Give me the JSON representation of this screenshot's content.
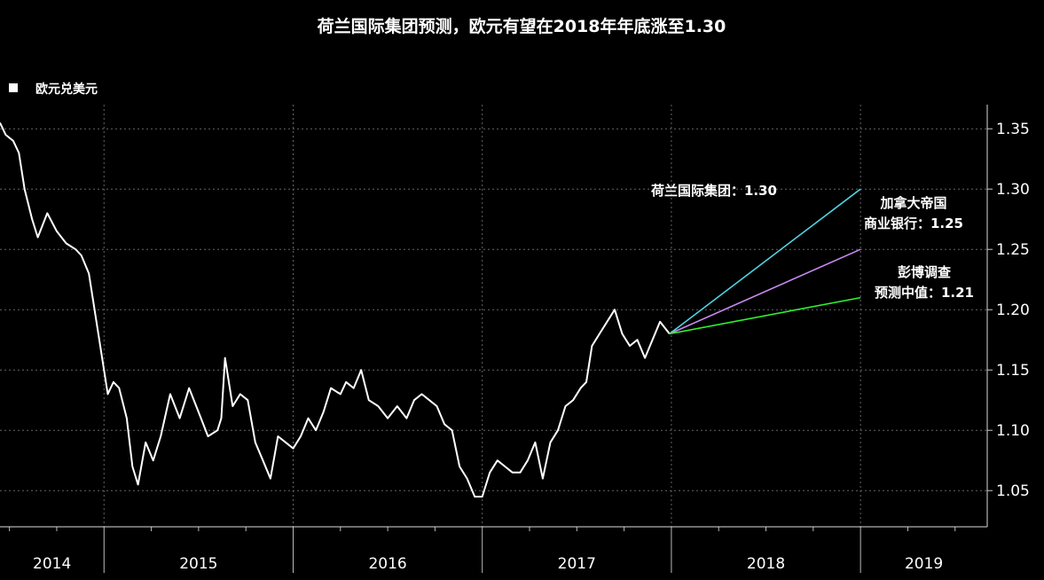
{
  "chart_data": {
    "type": "line",
    "title": "荷兰国际集团预测，欧元有望在2018年年底涨至1.30",
    "legend": [
      {
        "label": "欧元兑美元",
        "color": "#ffffff"
      }
    ],
    "y_ticks": [
      "1.05",
      "1.10",
      "1.15",
      "1.20",
      "1.25",
      "1.30",
      "1.35"
    ],
    "ylim": [
      1.02,
      1.37
    ],
    "x_year_labels": [
      "2014",
      "2015",
      "2016",
      "2017",
      "2018",
      "2019"
    ],
    "xlim": [
      2014.45,
      2019.67
    ],
    "grid": "dotted",
    "series": [
      {
        "name": "欧元兑美元",
        "color": "#ffffff",
        "points": [
          [
            2014.45,
            1.355
          ],
          [
            2014.48,
            1.345
          ],
          [
            2014.52,
            1.34
          ],
          [
            2014.55,
            1.33
          ],
          [
            2014.58,
            1.3
          ],
          [
            2014.62,
            1.275
          ],
          [
            2014.65,
            1.26
          ],
          [
            2014.7,
            1.28
          ],
          [
            2014.75,
            1.265
          ],
          [
            2014.8,
            1.255
          ],
          [
            2014.85,
            1.25
          ],
          [
            2014.88,
            1.245
          ],
          [
            2014.92,
            1.23
          ],
          [
            2014.95,
            1.2
          ],
          [
            2014.98,
            1.17
          ],
          [
            2015.02,
            1.13
          ],
          [
            2015.05,
            1.14
          ],
          [
            2015.08,
            1.135
          ],
          [
            2015.12,
            1.11
          ],
          [
            2015.15,
            1.07
          ],
          [
            2015.18,
            1.055
          ],
          [
            2015.22,
            1.09
          ],
          [
            2015.26,
            1.075
          ],
          [
            2015.3,
            1.095
          ],
          [
            2015.35,
            1.13
          ],
          [
            2015.4,
            1.11
          ],
          [
            2015.45,
            1.135
          ],
          [
            2015.5,
            1.115
          ],
          [
            2015.55,
            1.095
          ],
          [
            2015.6,
            1.1
          ],
          [
            2015.62,
            1.11
          ],
          [
            2015.64,
            1.16
          ],
          [
            2015.68,
            1.12
          ],
          [
            2015.72,
            1.13
          ],
          [
            2015.76,
            1.125
          ],
          [
            2015.8,
            1.09
          ],
          [
            2015.84,
            1.075
          ],
          [
            2015.88,
            1.06
          ],
          [
            2015.92,
            1.095
          ],
          [
            2015.96,
            1.09
          ],
          [
            2016.0,
            1.085
          ],
          [
            2016.04,
            1.095
          ],
          [
            2016.08,
            1.11
          ],
          [
            2016.12,
            1.1
          ],
          [
            2016.16,
            1.115
          ],
          [
            2016.2,
            1.135
          ],
          [
            2016.25,
            1.13
          ],
          [
            2016.28,
            1.14
          ],
          [
            2016.32,
            1.135
          ],
          [
            2016.36,
            1.15
          ],
          [
            2016.4,
            1.125
          ],
          [
            2016.45,
            1.12
          ],
          [
            2016.5,
            1.11
          ],
          [
            2016.55,
            1.12
          ],
          [
            2016.6,
            1.11
          ],
          [
            2016.64,
            1.125
          ],
          [
            2016.68,
            1.13
          ],
          [
            2016.72,
            1.125
          ],
          [
            2016.76,
            1.12
          ],
          [
            2016.8,
            1.105
          ],
          [
            2016.84,
            1.1
          ],
          [
            2016.88,
            1.07
          ],
          [
            2016.92,
            1.06
          ],
          [
            2016.96,
            1.045
          ],
          [
            2017.0,
            1.045
          ],
          [
            2017.04,
            1.065
          ],
          [
            2017.08,
            1.075
          ],
          [
            2017.12,
            1.07
          ],
          [
            2017.16,
            1.065
          ],
          [
            2017.2,
            1.065
          ],
          [
            2017.24,
            1.075
          ],
          [
            2017.28,
            1.09
          ],
          [
            2017.32,
            1.06
          ],
          [
            2017.36,
            1.09
          ],
          [
            2017.4,
            1.1
          ],
          [
            2017.44,
            1.12
          ],
          [
            2017.48,
            1.125
          ],
          [
            2017.52,
            1.135
          ],
          [
            2017.55,
            1.14
          ],
          [
            2017.58,
            1.17
          ],
          [
            2017.62,
            1.18
          ],
          [
            2017.66,
            1.19
          ],
          [
            2017.7,
            1.2
          ],
          [
            2017.74,
            1.18
          ],
          [
            2017.78,
            1.17
          ],
          [
            2017.82,
            1.175
          ],
          [
            2017.86,
            1.16
          ],
          [
            2017.9,
            1.175
          ],
          [
            2017.94,
            1.19
          ],
          [
            2017.99,
            1.18
          ]
        ]
      },
      {
        "name": "荷兰国际集团：1.30",
        "color": "#4fd2de",
        "points": [
          [
            2017.99,
            1.18
          ],
          [
            2019.0,
            1.3
          ]
        ]
      },
      {
        "name": "加拿大帝国商业银行：1.25",
        "color": "#c98af0",
        "points": [
          [
            2017.99,
            1.18
          ],
          [
            2019.0,
            1.25
          ]
        ]
      },
      {
        "name": "彭博调查预测中值：1.21",
        "color": "#2ef22e",
        "points": [
          [
            2017.99,
            1.18
          ],
          [
            2019.0,
            1.21
          ]
        ]
      }
    ],
    "annotations": [
      {
        "lines": [
          "荷兰国际集团：1.30"
        ]
      },
      {
        "lines": [
          "加拿大帝国",
          "商业银行：1.25"
        ]
      },
      {
        "lines": [
          "彭博调查",
          "预测中值：1.21"
        ]
      }
    ]
  }
}
